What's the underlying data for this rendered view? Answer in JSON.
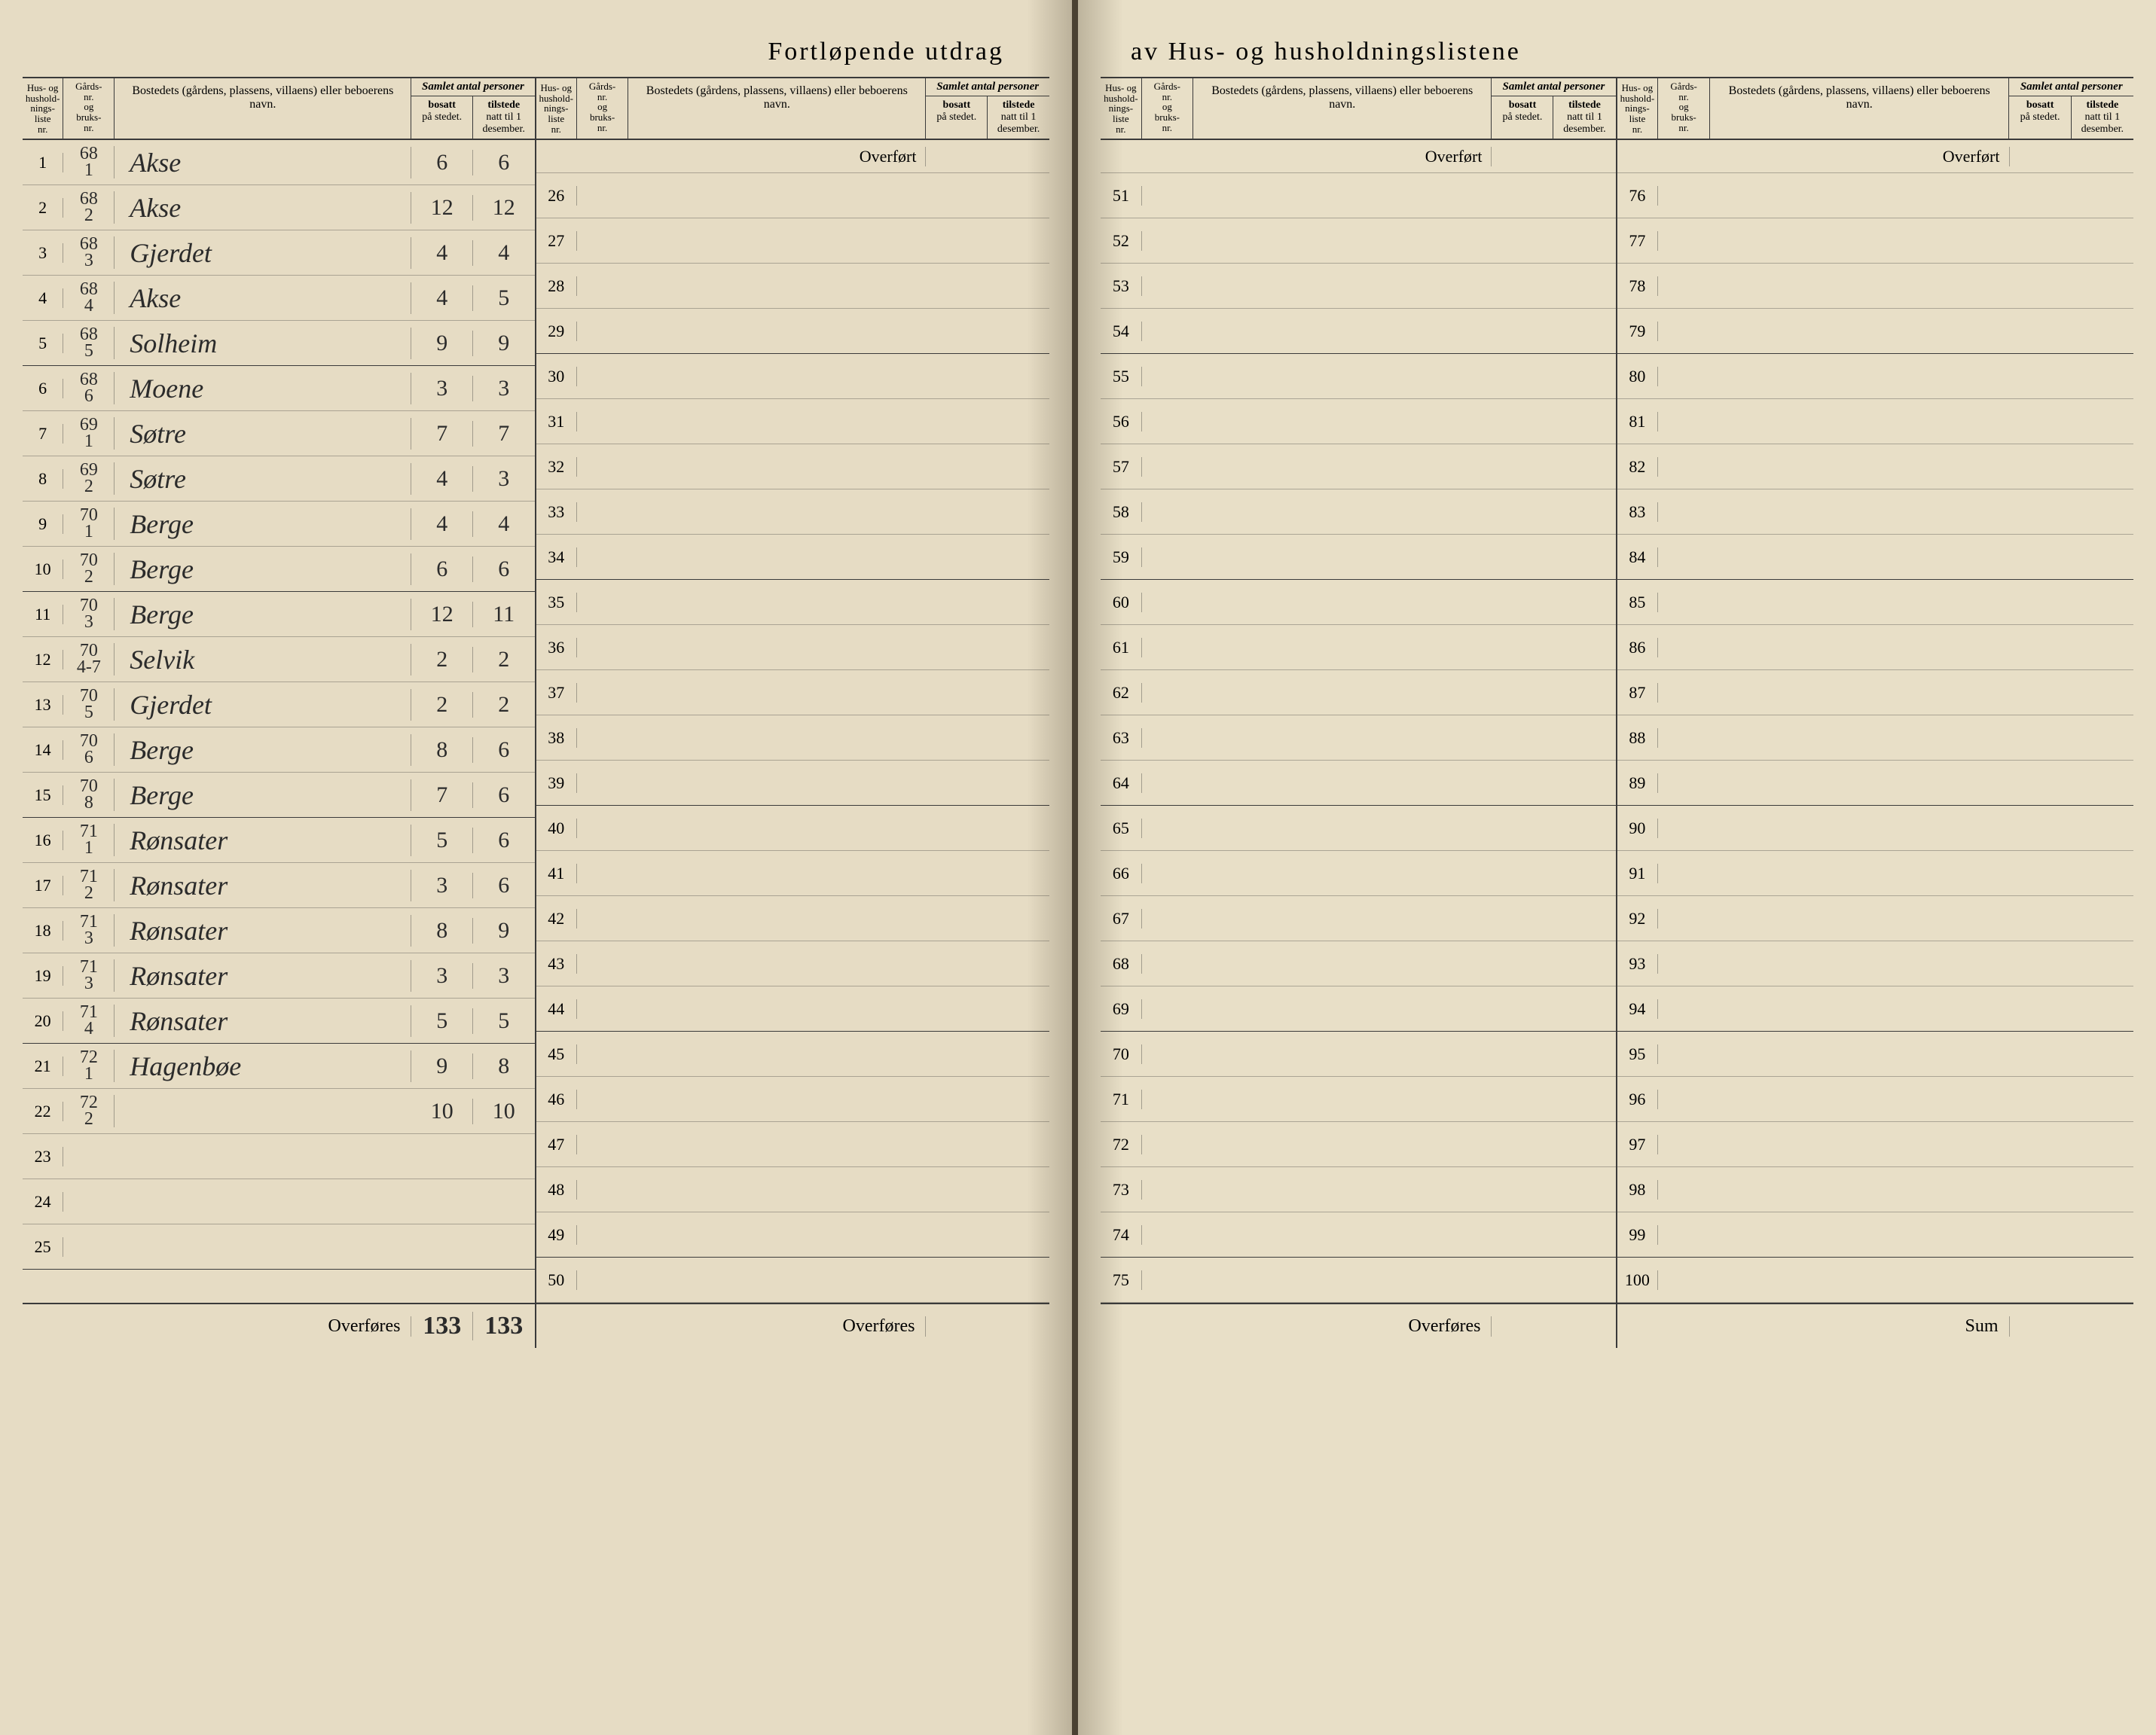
{
  "title_left": "Fortløpende utdrag",
  "title_right": "av Hus- og husholdningslistene",
  "head": {
    "nr_a": "Hus- og",
    "nr_b": "hushold-",
    "nr_c": "nings-",
    "nr_d": "liste",
    "nr_e": "nr.",
    "gards_a": "Gårds-",
    "gards_b": "nr.",
    "gards_c": "og",
    "gards_d": "bruks-",
    "gards_e": "nr.",
    "bosted": "Bostedets (gårdens, plassens, villaens) eller beboerens navn.",
    "samlet": "Samlet antal personer",
    "bosatt_a": "bosatt",
    "bosatt_b": "på stedet.",
    "tilstede_a": "tilstede",
    "tilstede_b": "natt til 1",
    "tilstede_c": "desember."
  },
  "overfort": "Overført",
  "overfores": "Overføres",
  "sum": "Sum",
  "total_bosatt": "133",
  "total_tilstede": "133",
  "ink_color": "#2b2b2b",
  "rows_block1": [
    {
      "n": "1",
      "g": "68\n1",
      "name": "Akse",
      "b": "6",
      "t": "6"
    },
    {
      "n": "2",
      "g": "68\n2",
      "name": "Akse",
      "b": "12",
      "t": "12"
    },
    {
      "n": "3",
      "g": "68\n3",
      "name": "Gjerdet",
      "b": "4",
      "t": "4"
    },
    {
      "n": "4",
      "g": "68\n4",
      "name": "Akse",
      "b": "4",
      "t": "5"
    },
    {
      "n": "5",
      "g": "68\n5",
      "name": "Solheim",
      "b": "9",
      "t": "9"
    },
    {
      "n": "6",
      "g": "68\n6",
      "name": "Moene",
      "b": "3",
      "t": "3"
    },
    {
      "n": "7",
      "g": "69\n1",
      "name": "Søtre",
      "b": "7",
      "t": "7"
    },
    {
      "n": "8",
      "g": "69\n2",
      "name": "Søtre",
      "b": "4",
      "t": "3"
    },
    {
      "n": "9",
      "g": "70\n1",
      "name": "Berge",
      "b": "4",
      "t": "4"
    },
    {
      "n": "10",
      "g": "70\n2",
      "name": "Berge",
      "b": "6",
      "t": "6"
    },
    {
      "n": "11",
      "g": "70\n3",
      "name": "Berge",
      "b": "12",
      "t": "11"
    },
    {
      "n": "12",
      "g": "70\n4-7",
      "name": "Selvik",
      "b": "2",
      "t": "2"
    },
    {
      "n": "13",
      "g": "70\n5",
      "name": "Gjerdet",
      "b": "2",
      "t": "2"
    },
    {
      "n": "14",
      "g": "70\n6",
      "name": "Berge",
      "b": "8",
      "t": "6"
    },
    {
      "n": "15",
      "g": "70\n8",
      "name": "Berge",
      "b": "7",
      "t": "6"
    },
    {
      "n": "16",
      "g": "71\n1",
      "name": "Rønsater",
      "b": "5",
      "t": "6"
    },
    {
      "n": "17",
      "g": "71\n2",
      "name": "Rønsater",
      "b": "3",
      "t": "6"
    },
    {
      "n": "18",
      "g": "71\n3",
      "name": "Rønsater",
      "b": "8",
      "t": "9"
    },
    {
      "n": "19",
      "g": "71\n3",
      "name": "Rønsater",
      "b": "3",
      "t": "3"
    },
    {
      "n": "20",
      "g": "71\n4",
      "name": "Rønsater",
      "b": "5",
      "t": "5"
    },
    {
      "n": "21",
      "g": "72\n1",
      "name": "Hagenbøe",
      "b": "9",
      "t": "8"
    },
    {
      "n": "22",
      "g": "72\n2",
      "name": "",
      "b": "10",
      "t": "10"
    },
    {
      "n": "23",
      "g": "",
      "name": "",
      "b": "",
      "t": ""
    },
    {
      "n": "24",
      "g": "",
      "name": "",
      "b": "",
      "t": ""
    },
    {
      "n": "25",
      "g": "",
      "name": "",
      "b": "",
      "t": ""
    }
  ],
  "rows_block2_start": 26,
  "rows_block3_start": 51,
  "rows_block4_start": 76
}
